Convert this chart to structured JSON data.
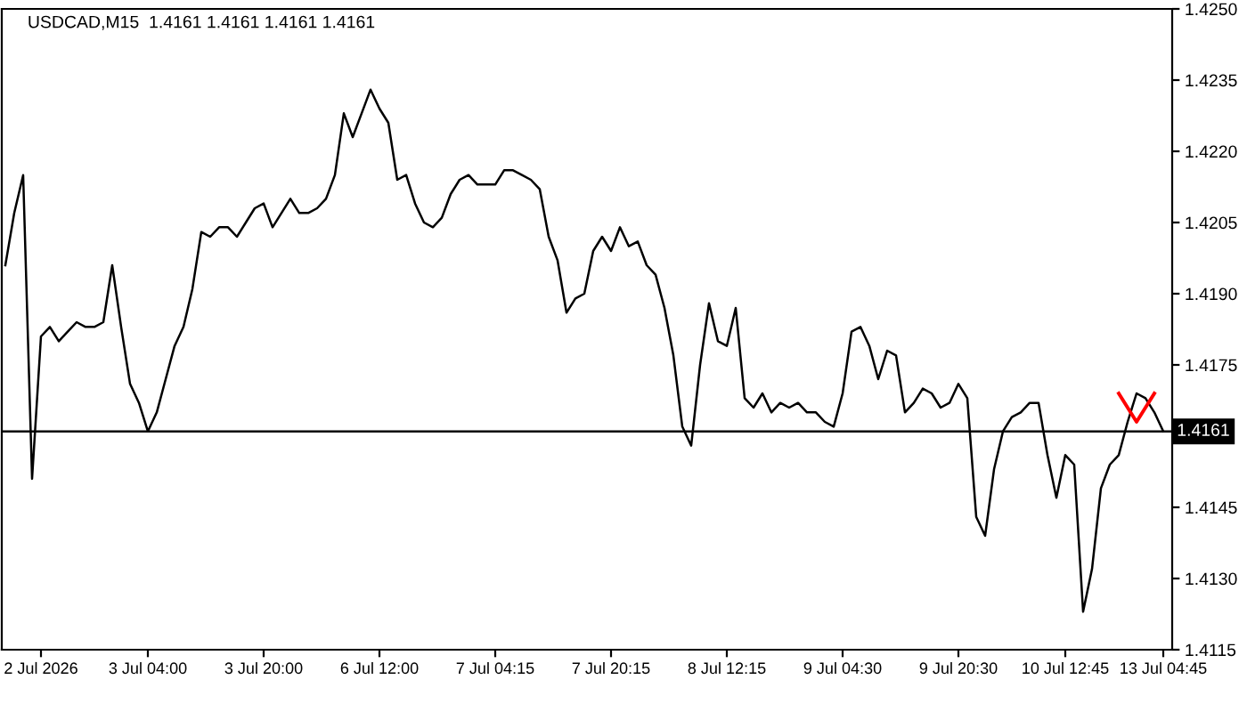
{
  "chart_data": {
    "type": "line",
    "title": "USDCAD,M15  1.4161 1.4161 1.4161 1.4161",
    "categories": [
      null,
      null,
      null,
      null,
      "2 Jul 2026",
      null,
      null,
      null,
      null,
      null,
      null,
      null,
      null,
      null,
      null,
      null,
      "3 Jul 04:00",
      null,
      null,
      null,
      null,
      null,
      null,
      null,
      null,
      null,
      null,
      null,
      null,
      "3 Jul 20:00",
      null,
      null,
      null,
      null,
      null,
      null,
      null,
      null,
      null,
      null,
      null,
      null,
      "6 Jul 12:00",
      null,
      null,
      null,
      null,
      null,
      null,
      null,
      null,
      null,
      null,
      null,
      null,
      "7 Jul 04:15",
      null,
      null,
      null,
      null,
      null,
      null,
      null,
      null,
      null,
      null,
      null,
      null,
      "7 Jul 20:15",
      null,
      null,
      null,
      null,
      null,
      null,
      null,
      null,
      null,
      null,
      null,
      null,
      "8 Jul 12:15",
      null,
      null,
      null,
      null,
      null,
      null,
      null,
      null,
      null,
      null,
      null,
      null,
      "9 Jul 04:30",
      null,
      null,
      null,
      null,
      null,
      null,
      null,
      null,
      null,
      null,
      null,
      null,
      "9 Jul 20:30",
      null,
      null,
      null,
      null,
      null,
      null,
      null,
      null,
      null,
      null,
      null,
      "10 Jul 12:45",
      null,
      null,
      null,
      null,
      null,
      null,
      null,
      null,
      null,
      null,
      "13 Jul 04:45"
    ],
    "series": [
      {
        "color": "#000000",
        "values": [
          1.4196,
          1.4207,
          1.4215,
          1.4151,
          1.4181,
          1.4183,
          1.418,
          1.4182,
          1.4184,
          1.4183,
          1.4183,
          1.4184,
          1.4196,
          1.4183,
          1.4171,
          1.4167,
          1.4161,
          1.4165,
          1.4172,
          1.4179,
          1.4183,
          1.4191,
          1.4203,
          1.4202,
          1.4204,
          1.4204,
          1.4202,
          1.4205,
          1.4208,
          1.4209,
          1.4204,
          1.4207,
          1.421,
          1.4207,
          1.4207,
          1.4208,
          1.421,
          1.4215,
          1.4228,
          1.4223,
          1.4228,
          1.4233,
          1.4229,
          1.4226,
          1.4214,
          1.4215,
          1.4209,
          1.4205,
          1.4204,
          1.4206,
          1.4211,
          1.4214,
          1.4215,
          1.4213,
          1.4213,
          1.4213,
          1.4216,
          1.4216,
          1.4215,
          1.4214,
          1.4212,
          1.4202,
          1.4197,
          1.4186,
          1.4189,
          1.419,
          1.4199,
          1.4202,
          1.4199,
          1.4204,
          1.42,
          1.4201,
          1.4196,
          1.4194,
          1.4187,
          1.4177,
          1.4162,
          1.4158,
          1.4175,
          1.4188,
          1.418,
          1.4179,
          1.4187,
          1.4168,
          1.4166,
          1.4169,
          1.4165,
          1.4167,
          1.4166,
          1.4167,
          1.4165,
          1.4165,
          1.4163,
          1.4162,
          1.4169,
          1.4182,
          1.4183,
          1.4179,
          1.4172,
          1.4178,
          1.4177,
          1.4165,
          1.4167,
          1.417,
          1.4169,
          1.4166,
          1.4167,
          1.4171,
          1.4168,
          1.4143,
          1.4139,
          1.4153,
          1.4161,
          1.4164,
          1.4165,
          1.4167,
          1.4167,
          1.4156,
          1.4147,
          1.4156,
          1.4154,
          1.4123,
          1.4132,
          1.4149,
          1.4154,
          1.4156,
          1.4163,
          1.4169,
          1.4168,
          1.4165,
          1.4161
        ]
      },
      {
        "color": "#ff0000",
        "values": [
          null,
          null,
          null,
          null,
          null,
          null,
          null,
          null,
          null,
          null,
          null,
          null,
          null,
          null,
          null,
          null,
          null,
          null,
          null,
          null,
          null,
          null,
          null,
          null,
          null,
          null,
          null,
          null,
          null,
          null,
          null,
          null,
          null,
          null,
          null,
          null,
          null,
          null,
          null,
          null,
          null,
          null,
          null,
          null,
          null,
          null,
          null,
          null,
          null,
          null,
          null,
          null,
          null,
          null,
          null,
          null,
          null,
          null,
          null,
          null,
          null,
          null,
          null,
          null,
          null,
          null,
          null,
          null,
          null,
          null,
          null,
          null,
          null,
          null,
          null,
          null,
          null,
          null,
          null,
          null,
          null,
          null,
          null,
          null,
          null,
          null,
          null,
          null,
          null,
          null,
          null,
          null,
          null,
          null,
          null,
          null,
          null,
          null,
          null,
          null,
          null,
          null,
          null,
          null,
          null,
          null,
          null,
          null,
          null,
          null,
          null,
          null,
          null,
          null,
          null,
          null,
          null,
          null,
          null,
          null,
          null,
          null,
          null,
          null,
          null,
          1.4169,
          null,
          1.4163,
          null,
          1.4169,
          null
        ]
      }
    ],
    "ylim": [
      1.4115,
      1.425
    ],
    "yticks": [
      {
        "value": 1.4115,
        "label": "1.4115"
      },
      {
        "value": 1.413,
        "label": "1.4130"
      },
      {
        "value": 1.4145,
        "label": "1.4145"
      },
      {
        "value": 1.4175,
        "label": "1.4175"
      },
      {
        "value": 1.419,
        "label": "1.4190"
      },
      {
        "value": 1.4205,
        "label": "1.4205"
      },
      {
        "value": 1.422,
        "label": "1.4220"
      },
      {
        "value": 1.4235,
        "label": "1.4235"
      },
      {
        "value": 1.425,
        "label": "1.4250"
      }
    ],
    "ref_lines": [
      {
        "axis": "y",
        "value": 1.4161,
        "label": "1.4161",
        "color": "#000000"
      }
    ],
    "grid": false,
    "legend": false,
    "marker": "none",
    "line_style": "solid"
  }
}
